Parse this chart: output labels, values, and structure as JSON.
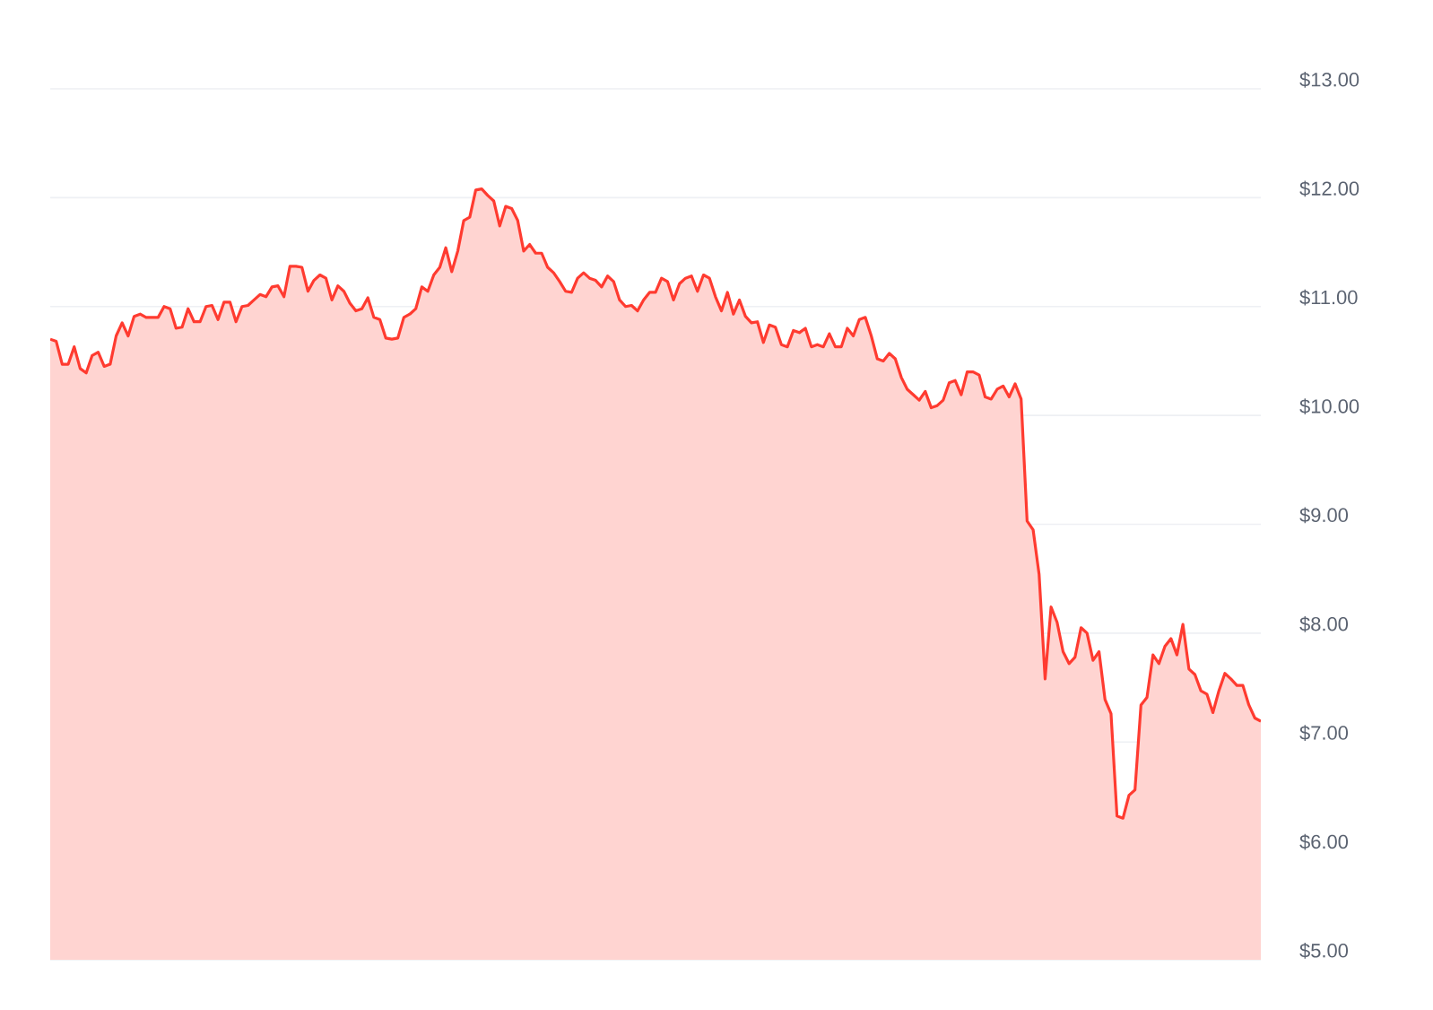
{
  "chart_data": {
    "type": "area",
    "color": "#ff3b30",
    "categories": [
      null,
      null,
      null,
      null,
      null,
      null,
      null,
      null,
      null,
      null,
      null,
      null,
      null,
      null,
      null,
      null,
      null,
      null,
      null,
      null,
      null,
      null,
      null,
      null,
      null,
      null,
      null,
      null,
      null,
      null,
      null,
      null,
      null,
      null,
      null,
      null,
      null,
      null,
      null,
      null,
      null,
      null,
      null,
      null,
      null,
      null,
      null,
      null,
      null,
      null,
      null,
      null,
      null,
      null,
      null,
      null,
      null,
      null,
      null,
      null,
      null,
      null,
      null,
      null,
      null,
      null,
      null,
      null,
      null,
      null,
      null,
      null,
      null,
      null,
      null,
      null,
      null,
      null,
      null,
      null,
      null,
      null,
      null,
      null,
      null,
      null,
      null,
      null,
      null,
      null,
      null,
      null,
      null,
      null,
      null,
      null,
      null,
      null,
      null,
      null,
      null,
      null,
      null,
      null,
      null,
      null,
      null,
      null,
      null,
      null,
      null,
      null,
      null,
      null,
      null,
      null,
      null,
      null,
      null,
      null,
      null,
      null,
      null,
      null,
      null,
      null,
      null,
      null,
      null,
      null,
      null,
      null,
      null,
      null,
      null,
      null,
      null,
      null,
      null,
      null,
      null,
      null,
      null,
      null,
      null,
      null,
      null,
      null,
      null,
      null,
      null,
      null,
      null,
      null,
      null,
      null,
      null,
      null,
      null,
      null,
      null,
      null,
      null,
      null,
      null,
      null,
      null,
      null,
      null,
      null,
      null,
      null,
      null,
      null,
      null,
      null,
      null,
      null,
      null,
      null,
      null,
      null,
      null,
      null,
      null,
      null,
      null,
      null,
      null,
      null,
      null,
      null,
      null,
      null,
      null,
      null,
      null,
      null,
      null,
      null,
      null,
      null,
      null
    ],
    "values": [
      10.7,
      10.68,
      10.47,
      10.47,
      10.63,
      10.43,
      10.39,
      10.55,
      10.58,
      10.45,
      10.47,
      10.73,
      10.85,
      10.73,
      10.91,
      10.93,
      10.9,
      10.9,
      10.9,
      11.0,
      10.98,
      10.8,
      10.81,
      10.98,
      10.86,
      10.86,
      11.0,
      11.01,
      10.88,
      11.04,
      11.04,
      10.86,
      11.0,
      11.01,
      11.06,
      11.11,
      11.09,
      11.18,
      11.19,
      11.09,
      11.37,
      11.37,
      11.36,
      11.14,
      11.24,
      11.29,
      11.26,
      11.06,
      11.19,
      11.14,
      11.03,
      10.96,
      10.98,
      11.08,
      10.9,
      10.88,
      10.71,
      10.7,
      10.71,
      10.9,
      10.93,
      10.98,
      11.18,
      11.14,
      11.29,
      11.36,
      11.54,
      11.32,
      11.51,
      11.79,
      11.82,
      12.07,
      12.08,
      12.02,
      11.97,
      11.74,
      11.92,
      11.9,
      11.79,
      11.51,
      11.57,
      11.49,
      11.49,
      11.36,
      11.31,
      11.23,
      11.14,
      11.13,
      11.26,
      11.31,
      11.26,
      11.24,
      11.18,
      11.28,
      11.23,
      11.06,
      11.0,
      11.01,
      10.96,
      11.06,
      11.13,
      11.13,
      11.26,
      11.23,
      11.06,
      11.21,
      11.26,
      11.28,
      11.14,
      11.29,
      11.26,
      11.09,
      10.96,
      11.13,
      10.93,
      11.06,
      10.91,
      10.85,
      10.86,
      10.67,
      10.83,
      10.81,
      10.65,
      10.63,
      10.78,
      10.76,
      10.8,
      10.63,
      10.65,
      10.63,
      10.75,
      10.63,
      10.63,
      10.8,
      10.73,
      10.88,
      10.9,
      10.73,
      10.52,
      10.5,
      10.57,
      10.52,
      10.35,
      10.24,
      10.19,
      10.14,
      10.22,
      10.07,
      10.09,
      10.14,
      10.3,
      10.32,
      10.19,
      10.4,
      10.4,
      10.37,
      10.17,
      10.15,
      10.24,
      10.27,
      10.17,
      10.29,
      10.15,
      9.03,
      8.95,
      8.54,
      7.58,
      8.24,
      8.1,
      7.83,
      7.72,
      7.78,
      8.05,
      8.0,
      7.75,
      7.83,
      7.39,
      7.26,
      6.32,
      6.3,
      6.51,
      6.56,
      7.34,
      7.41,
      7.8,
      7.72,
      7.88,
      7.95,
      7.8,
      8.08,
      7.67,
      7.62,
      7.47,
      7.44,
      7.27,
      7.47,
      7.63,
      7.58,
      7.52,
      7.52,
      7.34,
      7.22,
      7.19
    ],
    "ylim": [
      5,
      13
    ],
    "yticks": [
      {
        "value": 5,
        "label": "$5.00"
      },
      {
        "value": 6,
        "label": "$6.00"
      },
      {
        "value": 7,
        "label": "$7.00"
      },
      {
        "value": 8,
        "label": "$8.00"
      },
      {
        "value": 9,
        "label": "$9.00"
      },
      {
        "value": 10,
        "label": "$10.00"
      },
      {
        "value": 11,
        "label": "$11.00"
      },
      {
        "value": 12,
        "label": "$12.00"
      },
      {
        "value": 13,
        "label": "$13.00"
      }
    ],
    "grid": "y",
    "tick_labels": "y"
  }
}
